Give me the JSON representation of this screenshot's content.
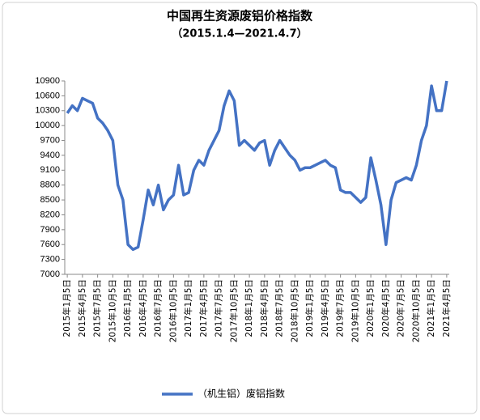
{
  "chart_data": {
    "type": "line",
    "title": "中国再生资源废铝价格指数",
    "subtitle": "（2015.1.4—2021.4.7）",
    "categories": [
      "2015年1月5日",
      null,
      null,
      "2015年4月5日",
      null,
      null,
      "2015年7月5日",
      null,
      null,
      "2015年10月5日",
      null,
      null,
      "2016年1月5日",
      null,
      null,
      "2016年4月5日",
      null,
      null,
      "2016年7月5日",
      null,
      null,
      "2016年10月5日",
      null,
      null,
      "2017年1月5日",
      null,
      null,
      "2017年4月5日",
      null,
      null,
      "2017年7月5日",
      null,
      null,
      "2017年10月5日",
      null,
      null,
      "2018年1月5日",
      null,
      null,
      "2018年4月5日",
      null,
      null,
      "2018年7月5日",
      null,
      null,
      "2018年10月5日",
      null,
      null,
      "2019年1月5日",
      null,
      null,
      "2019年4月5日",
      null,
      null,
      "2019年7月5日",
      null,
      null,
      "2019年10月5日",
      null,
      null,
      "2020年1月5日",
      null,
      null,
      "2020年4月5日",
      null,
      null,
      "2020年7月5日",
      null,
      null,
      "2020年10月5日",
      null,
      null,
      "2021年1月5日",
      null,
      null,
      "2021年4月5日"
    ],
    "series": [
      {
        "name": "（机生铝）废铝指数",
        "color": "#4472c4",
        "values": [
          10250,
          10400,
          10300,
          10550,
          10500,
          10450,
          10150,
          10050,
          9900,
          9700,
          8800,
          8500,
          7600,
          7500,
          7550,
          8100,
          8700,
          8400,
          8800,
          8300,
          8500,
          8600,
          9200,
          8600,
          8650,
          9100,
          9300,
          9200,
          9500,
          9700,
          9900,
          10400,
          10700,
          10500,
          9600,
          9700,
          9600,
          9500,
          9650,
          9700,
          9200,
          9500,
          9700,
          9550,
          9400,
          9300,
          9100,
          9150,
          9150,
          9200,
          9250,
          9300,
          9200,
          9150,
          8700,
          8650,
          8650,
          8550,
          8450,
          8550,
          9350,
          8900,
          8400,
          7600,
          8500,
          8850,
          8900,
          8950,
          8900,
          9200,
          9700,
          10000,
          10800,
          10300,
          10300,
          10900
        ]
      }
    ],
    "ylim": [
      7000,
      10900
    ],
    "yticks": [
      7000,
      7300,
      7600,
      7900,
      8200,
      8500,
      8800,
      9100,
      9400,
      9700,
      10000,
      10300,
      10600,
      10900
    ],
    "grid": false
  }
}
